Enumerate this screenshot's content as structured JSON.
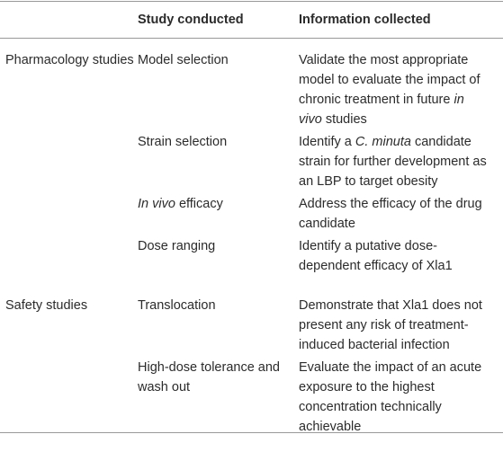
{
  "table": {
    "header": [
      "Study conducted",
      "Information collected"
    ],
    "groups": [
      {
        "label": "Pharmacology studies",
        "rows": [
          {
            "study": [
              {
                "text": "Model selection"
              }
            ],
            "info": [
              {
                "text": "Validate the most appropriate model to evaluate the impact of chronic treatment in future "
              },
              {
                "text": "in vivo",
                "italic": true
              },
              {
                "text": " studies"
              }
            ]
          },
          {
            "study": [
              {
                "text": "Strain selection"
              }
            ],
            "info": [
              {
                "text": "Identify a "
              },
              {
                "text": "C. minuta",
                "italic": true
              },
              {
                "text": " candidate strain for further development as an LBP to target obesity"
              }
            ]
          },
          {
            "study": [
              {
                "text": "In vivo",
                "italic": true
              },
              {
                "text": " efficacy"
              }
            ],
            "info": [
              {
                "text": "Address the efficacy of the drug candidate"
              }
            ]
          },
          {
            "study": [
              {
                "text": "Dose ranging"
              }
            ],
            "info": [
              {
                "text": "Identify a putative dose-dependent efficacy of Xla1"
              }
            ]
          }
        ]
      },
      {
        "label": "Safety studies",
        "rows": [
          {
            "study": [
              {
                "text": "Translocation"
              }
            ],
            "info": [
              {
                "text": "Demonstrate that Xla1 does not present any risk of treatment-induced bacterial infection"
              }
            ]
          },
          {
            "study": [
              {
                "text": "High-dose tolerance and wash out"
              }
            ],
            "info": [
              {
                "text": "Evaluate the impact of an acute exposure to the highest concentration technically achievable"
              }
            ]
          }
        ]
      }
    ]
  }
}
